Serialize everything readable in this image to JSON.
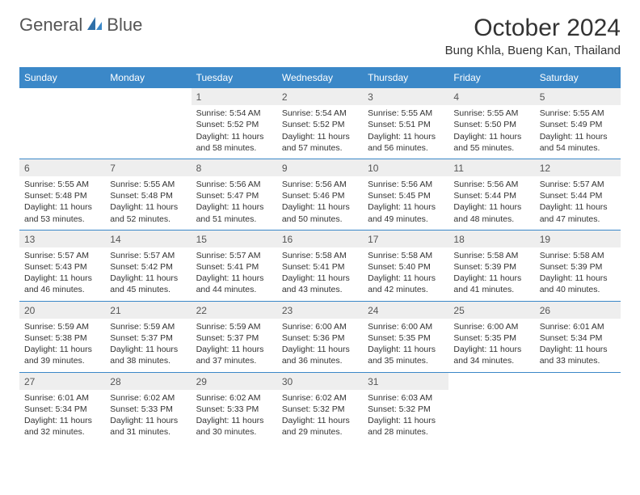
{
  "logo": {
    "text1": "General",
    "text2": "Blue"
  },
  "title": "October 2024",
  "location": "Bung Khla, Bueng Kan, Thailand",
  "colors": {
    "header_bg": "#3b88c8",
    "header_text": "#ffffff",
    "daynum_bg": "#eeeeee",
    "border": "#3b88c8",
    "body_text": "#333333",
    "cell_fontsize": 10.5
  },
  "weekdays": [
    "Sunday",
    "Monday",
    "Tuesday",
    "Wednesday",
    "Thursday",
    "Friday",
    "Saturday"
  ],
  "weeks": [
    [
      null,
      null,
      {
        "n": "1",
        "sunrise": "5:54 AM",
        "sunset": "5:52 PM",
        "dl1": "11 hours",
        "dl2": "and 58 minutes."
      },
      {
        "n": "2",
        "sunrise": "5:54 AM",
        "sunset": "5:52 PM",
        "dl1": "11 hours",
        "dl2": "and 57 minutes."
      },
      {
        "n": "3",
        "sunrise": "5:55 AM",
        "sunset": "5:51 PM",
        "dl1": "11 hours",
        "dl2": "and 56 minutes."
      },
      {
        "n": "4",
        "sunrise": "5:55 AM",
        "sunset": "5:50 PM",
        "dl1": "11 hours",
        "dl2": "and 55 minutes."
      },
      {
        "n": "5",
        "sunrise": "5:55 AM",
        "sunset": "5:49 PM",
        "dl1": "11 hours",
        "dl2": "and 54 minutes."
      }
    ],
    [
      {
        "n": "6",
        "sunrise": "5:55 AM",
        "sunset": "5:48 PM",
        "dl1": "11 hours",
        "dl2": "and 53 minutes."
      },
      {
        "n": "7",
        "sunrise": "5:55 AM",
        "sunset": "5:48 PM",
        "dl1": "11 hours",
        "dl2": "and 52 minutes."
      },
      {
        "n": "8",
        "sunrise": "5:56 AM",
        "sunset": "5:47 PM",
        "dl1": "11 hours",
        "dl2": "and 51 minutes."
      },
      {
        "n": "9",
        "sunrise": "5:56 AM",
        "sunset": "5:46 PM",
        "dl1": "11 hours",
        "dl2": "and 50 minutes."
      },
      {
        "n": "10",
        "sunrise": "5:56 AM",
        "sunset": "5:45 PM",
        "dl1": "11 hours",
        "dl2": "and 49 minutes."
      },
      {
        "n": "11",
        "sunrise": "5:56 AM",
        "sunset": "5:44 PM",
        "dl1": "11 hours",
        "dl2": "and 48 minutes."
      },
      {
        "n": "12",
        "sunrise": "5:57 AM",
        "sunset": "5:44 PM",
        "dl1": "11 hours",
        "dl2": "and 47 minutes."
      }
    ],
    [
      {
        "n": "13",
        "sunrise": "5:57 AM",
        "sunset": "5:43 PM",
        "dl1": "11 hours",
        "dl2": "and 46 minutes."
      },
      {
        "n": "14",
        "sunrise": "5:57 AM",
        "sunset": "5:42 PM",
        "dl1": "11 hours",
        "dl2": "and 45 minutes."
      },
      {
        "n": "15",
        "sunrise": "5:57 AM",
        "sunset": "5:41 PM",
        "dl1": "11 hours",
        "dl2": "and 44 minutes."
      },
      {
        "n": "16",
        "sunrise": "5:58 AM",
        "sunset": "5:41 PM",
        "dl1": "11 hours",
        "dl2": "and 43 minutes."
      },
      {
        "n": "17",
        "sunrise": "5:58 AM",
        "sunset": "5:40 PM",
        "dl1": "11 hours",
        "dl2": "and 42 minutes."
      },
      {
        "n": "18",
        "sunrise": "5:58 AM",
        "sunset": "5:39 PM",
        "dl1": "11 hours",
        "dl2": "and 41 minutes."
      },
      {
        "n": "19",
        "sunrise": "5:58 AM",
        "sunset": "5:39 PM",
        "dl1": "11 hours",
        "dl2": "and 40 minutes."
      }
    ],
    [
      {
        "n": "20",
        "sunrise": "5:59 AM",
        "sunset": "5:38 PM",
        "dl1": "11 hours",
        "dl2": "and 39 minutes."
      },
      {
        "n": "21",
        "sunrise": "5:59 AM",
        "sunset": "5:37 PM",
        "dl1": "11 hours",
        "dl2": "and 38 minutes."
      },
      {
        "n": "22",
        "sunrise": "5:59 AM",
        "sunset": "5:37 PM",
        "dl1": "11 hours",
        "dl2": "and 37 minutes."
      },
      {
        "n": "23",
        "sunrise": "6:00 AM",
        "sunset": "5:36 PM",
        "dl1": "11 hours",
        "dl2": "and 36 minutes."
      },
      {
        "n": "24",
        "sunrise": "6:00 AM",
        "sunset": "5:35 PM",
        "dl1": "11 hours",
        "dl2": "and 35 minutes."
      },
      {
        "n": "25",
        "sunrise": "6:00 AM",
        "sunset": "5:35 PM",
        "dl1": "11 hours",
        "dl2": "and 34 minutes."
      },
      {
        "n": "26",
        "sunrise": "6:01 AM",
        "sunset": "5:34 PM",
        "dl1": "11 hours",
        "dl2": "and 33 minutes."
      }
    ],
    [
      {
        "n": "27",
        "sunrise": "6:01 AM",
        "sunset": "5:34 PM",
        "dl1": "11 hours",
        "dl2": "and 32 minutes."
      },
      {
        "n": "28",
        "sunrise": "6:02 AM",
        "sunset": "5:33 PM",
        "dl1": "11 hours",
        "dl2": "and 31 minutes."
      },
      {
        "n": "29",
        "sunrise": "6:02 AM",
        "sunset": "5:33 PM",
        "dl1": "11 hours",
        "dl2": "and 30 minutes."
      },
      {
        "n": "30",
        "sunrise": "6:02 AM",
        "sunset": "5:32 PM",
        "dl1": "11 hours",
        "dl2": "and 29 minutes."
      },
      {
        "n": "31",
        "sunrise": "6:03 AM",
        "sunset": "5:32 PM",
        "dl1": "11 hours",
        "dl2": "and 28 minutes."
      },
      null,
      null
    ]
  ],
  "labels": {
    "sunrise": "Sunrise: ",
    "sunset": "Sunset: ",
    "daylight": "Daylight: "
  }
}
